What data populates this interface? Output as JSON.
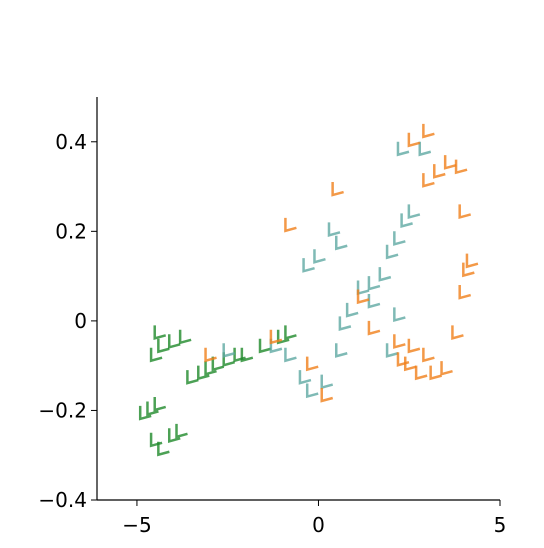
{
  "chart_data": {
    "type": "scatter",
    "xlim": [
      -6.1,
      5
    ],
    "ylim": [
      -0.4,
      0.5
    ],
    "xticks": [
      {
        "value": -5,
        "label": "−5"
      },
      0,
      5
    ],
    "yticks": [
      {
        "value": 0.4,
        "label": "0.4"
      },
      {
        "value": 0.2,
        "label": "0.2"
      },
      0,
      {
        "value": -0.2,
        "label": "−0.2"
      },
      {
        "value": -0.4,
        "label": "−0.4"
      }
    ],
    "series": [
      {
        "color": "#1f8a2a",
        "x": [
          -4.8,
          -4.6,
          -4.4,
          -4.5,
          -4.3,
          -4.0,
          -3.8,
          -4.5,
          -4.3,
          -4.0,
          -3.7,
          -4.4,
          -3.5,
          -3.2,
          -2.8,
          -2.5,
          -2.0,
          -1.5,
          -1.0,
          -0.8,
          -3.0,
          -2.2
        ],
        "values": [
          -0.21,
          -0.2,
          -0.19,
          -0.27,
          -0.29,
          -0.26,
          -0.25,
          -0.08,
          -0.06,
          -0.05,
          -0.04,
          -0.03,
          -0.13,
          -0.12,
          -0.1,
          -0.09,
          -0.08,
          -0.06,
          -0.04,
          -0.03,
          -0.11,
          -0.08
        ]
      },
      {
        "color": "#5fa9a2",
        "x": [
          -2.5,
          -1.2,
          -0.8,
          -0.4,
          -0.2,
          0.2,
          0.6,
          0.7,
          0.9,
          1.2,
          1.5,
          1.8,
          2.0,
          2.2,
          2.4,
          2.6,
          2.3,
          2.9,
          0.4,
          0.6,
          -0.3,
          0.0,
          2.2,
          2.0,
          1.5
        ],
        "values": [
          -0.07,
          -0.06,
          -0.08,
          -0.13,
          -0.16,
          -0.14,
          -0.07,
          -0.01,
          0.02,
          0.07,
          0.08,
          0.1,
          0.15,
          0.18,
          0.22,
          0.24,
          0.38,
          0.38,
          0.2,
          0.17,
          0.12,
          0.14,
          0.01,
          -0.07,
          0.04
        ]
      },
      {
        "color": "#f07f1a",
        "x": [
          -3.0,
          -1.2,
          -0.8,
          0.5,
          1.2,
          0.2,
          -0.2,
          3.0,
          2.6,
          3.0,
          3.3,
          3.6,
          3.9,
          4.0,
          4.1,
          4.2,
          4.0,
          3.8,
          3.5,
          3.2,
          2.8,
          2.5,
          2.3,
          2.2,
          1.5,
          2.6,
          3.0
        ],
        "values": [
          -0.08,
          -0.04,
          0.21,
          0.29,
          0.05,
          -0.17,
          -0.1,
          0.42,
          0.4,
          0.31,
          0.33,
          0.35,
          0.34,
          0.24,
          0.11,
          0.13,
          0.06,
          -0.03,
          -0.11,
          -0.12,
          -0.12,
          -0.1,
          -0.09,
          -0.05,
          -0.02,
          -0.06,
          -0.08
        ]
      }
    ]
  }
}
